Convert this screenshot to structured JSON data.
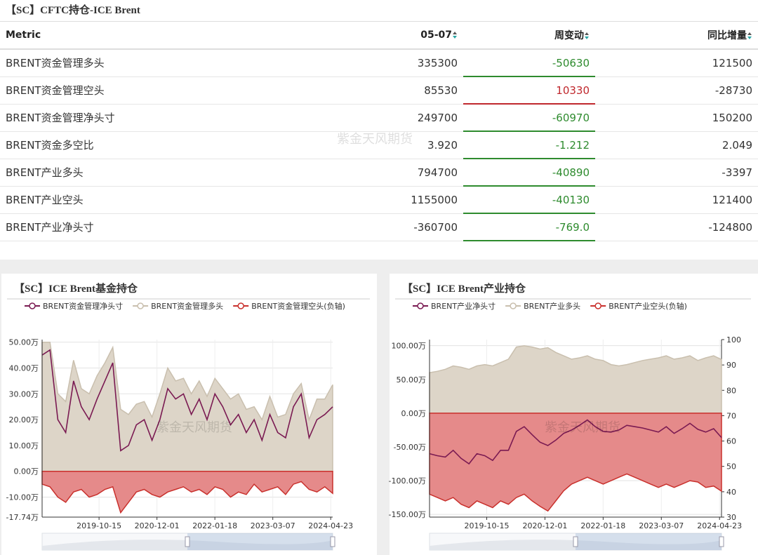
{
  "watermark": "紫金天风期货",
  "table": {
    "title": "【SC】CFTC持仓-ICE Brent",
    "columns": [
      "Metric",
      "05-07",
      "周变动",
      "同比增量"
    ],
    "rows": [
      [
        "BRENT资金管理多头",
        "335300",
        "-50630",
        "121500"
      ],
      [
        "BRENT资金管理空头",
        "85530",
        "10330",
        "-28730"
      ],
      [
        "BRENT资金管理净头寸",
        "249700",
        "-60970",
        "150200"
      ],
      [
        "BRENT资金多空比",
        "3.920",
        "-1.212",
        "2.049"
      ],
      [
        "BRENT产业多头",
        "794700",
        "-40890",
        "-3397"
      ],
      [
        "BRENT产业空头",
        "1155000",
        "-40130",
        "121400"
      ],
      [
        "BRENT产业净头寸",
        "-360700",
        "-769.0",
        "-124800"
      ]
    ]
  },
  "chart_data": [
    {
      "type": "line",
      "title": "【SC】ICE Brent基金持仓",
      "x": [
        "2018-09-04",
        "2018-10-30",
        "2018-12-25",
        "2019-02-19",
        "2019-04-16",
        "2019-06-11",
        "2019-08-06",
        "2019-10-01",
        "2019-11-26",
        "2020-01-21",
        "2020-03-17",
        "2020-05-12",
        "2020-07-07",
        "2020-09-01",
        "2020-10-27",
        "2020-12-22",
        "2021-02-16",
        "2021-04-13",
        "2021-06-08",
        "2021-08-03",
        "2021-09-28",
        "2021-11-23",
        "2022-01-18",
        "2022-03-15",
        "2022-05-10",
        "2022-07-05",
        "2022-08-30",
        "2022-10-25",
        "2022-12-20",
        "2023-02-14",
        "2023-04-11",
        "2023-06-06",
        "2023-08-01",
        "2023-09-26",
        "2023-11-21",
        "2024-01-16",
        "2024-03-12",
        "2024-05-07"
      ],
      "xlim": [
        "2018-09-04",
        "2024-05-07"
      ],
      "xticks": [
        "2019-10-15",
        "2020-12-01",
        "2022-01-18",
        "2023-03-07",
        "2024-04-23"
      ],
      "ylim": [
        -177400,
        510000
      ],
      "yticks": [
        {
          "value": -177400,
          "label": "-17.74万"
        },
        {
          "value": -100000,
          "label": "-10.00万"
        },
        {
          "value": 0,
          "label": "0.00万"
        },
        {
          "value": 100000,
          "label": "10.00万"
        },
        {
          "value": 200000,
          "label": "20.00万"
        },
        {
          "value": 300000,
          "label": "30.00万"
        },
        {
          "value": 400000,
          "label": "40.00万"
        },
        {
          "value": 500000,
          "label": "50.00万"
        }
      ],
      "grid": true,
      "series": [
        {
          "name": "BRENT资金管理净头寸",
          "color": "#7a1a52",
          "values": [
            450000,
            470000,
            200000,
            150000,
            350000,
            250000,
            200000,
            280000,
            350000,
            420000,
            80000,
            100000,
            180000,
            200000,
            120000,
            200000,
            320000,
            280000,
            300000,
            220000,
            280000,
            200000,
            300000,
            250000,
            180000,
            220000,
            150000,
            200000,
            120000,
            220000,
            150000,
            130000,
            250000,
            300000,
            130000,
            200000,
            220000,
            249700
          ]
        },
        {
          "name": "BRENT资金管理多头",
          "color": "#c9bfae",
          "area_color": "#ddd5c8",
          "values": [
            500000,
            500000,
            300000,
            270000,
            430000,
            320000,
            300000,
            370000,
            420000,
            480000,
            240000,
            220000,
            260000,
            270000,
            210000,
            300000,
            400000,
            350000,
            360000,
            300000,
            350000,
            290000,
            360000,
            320000,
            280000,
            300000,
            240000,
            250000,
            200000,
            290000,
            210000,
            220000,
            300000,
            340000,
            200000,
            280000,
            280000,
            335300
          ]
        },
        {
          "name": "BRENT资金管理空头(负轴)",
          "color": "#c9302c",
          "area_color": "#e58a8a",
          "values": [
            -50000,
            -60000,
            -100000,
            -120000,
            -80000,
            -70000,
            -100000,
            -90000,
            -70000,
            -60000,
            -160000,
            -120000,
            -80000,
            -70000,
            -90000,
            -100000,
            -80000,
            -70000,
            -60000,
            -80000,
            -70000,
            -90000,
            -60000,
            -70000,
            -100000,
            -80000,
            -90000,
            -50000,
            -80000,
            -70000,
            -60000,
            -90000,
            -50000,
            -40000,
            -70000,
            -80000,
            -60000,
            -85530
          ]
        }
      ]
    },
    {
      "type": "line",
      "title": "【SC】ICE Brent产业持仓",
      "x": [
        "2018-09-04",
        "2018-10-30",
        "2018-12-25",
        "2019-02-19",
        "2019-04-16",
        "2019-06-11",
        "2019-08-06",
        "2019-10-01",
        "2019-11-26",
        "2020-01-21",
        "2020-03-17",
        "2020-05-12",
        "2020-07-07",
        "2020-09-01",
        "2020-10-27",
        "2020-12-22",
        "2021-02-16",
        "2021-04-13",
        "2021-06-08",
        "2021-08-03",
        "2021-09-28",
        "2021-11-23",
        "2022-01-18",
        "2022-03-15",
        "2022-05-10",
        "2022-07-05",
        "2022-08-30",
        "2022-10-25",
        "2022-12-20",
        "2023-02-14",
        "2023-04-11",
        "2023-06-06",
        "2023-08-01",
        "2023-09-26",
        "2023-11-21",
        "2024-01-16",
        "2024-03-12",
        "2024-05-07"
      ],
      "xlim": [
        "2018-09-04",
        "2024-05-07"
      ],
      "xticks": [
        "2019-10-15",
        "2020-12-01",
        "2022-01-18",
        "2023-03-07",
        "2024-04-23"
      ],
      "ylim": [
        -1540000,
        1090000
      ],
      "yticks": [
        {
          "value": -1500000,
          "label": "-150.00万"
        },
        {
          "value": -1000000,
          "label": "-100.00万"
        },
        {
          "value": -500000,
          "label": "-50.00万"
        },
        {
          "value": 0,
          "label": "0.00万"
        },
        {
          "value": 500000,
          "label": "50.00万"
        },
        {
          "value": 1000000,
          "label": "100.00万"
        }
      ],
      "y2lim": [
        30,
        100
      ],
      "y2ticks": [
        30,
        40,
        50,
        60,
        70,
        80,
        90,
        100
      ],
      "grid": true,
      "series": [
        {
          "name": "BRENT产业净头寸",
          "color": "#7a1a52",
          "values": [
            -600000,
            -630000,
            -650000,
            -550000,
            -670000,
            -750000,
            -600000,
            -630000,
            -700000,
            -550000,
            -550000,
            -270000,
            -200000,
            -320000,
            -430000,
            -480000,
            -400000,
            -300000,
            -250000,
            -180000,
            -100000,
            -200000,
            -270000,
            -280000,
            -250000,
            -180000,
            -200000,
            -220000,
            -250000,
            -280000,
            -200000,
            -300000,
            -230000,
            -150000,
            -240000,
            -280000,
            -230000,
            -360700
          ]
        },
        {
          "name": "BRENT产业多头",
          "color": "#c9bfae",
          "area_color": "#ddd5c8",
          "values": [
            600000,
            620000,
            650000,
            700000,
            680000,
            650000,
            700000,
            720000,
            700000,
            750000,
            800000,
            980000,
            1000000,
            980000,
            950000,
            970000,
            900000,
            850000,
            800000,
            820000,
            850000,
            800000,
            780000,
            720000,
            700000,
            720000,
            750000,
            780000,
            800000,
            820000,
            850000,
            800000,
            820000,
            850000,
            780000,
            820000,
            850000,
            794700
          ]
        },
        {
          "name": "BRENT产业空头(负轴)",
          "color": "#c9302c",
          "area_color": "#e58a8a",
          "values": [
            -1200000,
            -1250000,
            -1300000,
            -1250000,
            -1350000,
            -1400000,
            -1300000,
            -1350000,
            -1400000,
            -1300000,
            -1350000,
            -1250000,
            -1200000,
            -1300000,
            -1380000,
            -1450000,
            -1300000,
            -1150000,
            -1050000,
            -1000000,
            -950000,
            -1000000,
            -1050000,
            -1000000,
            -950000,
            -900000,
            -950000,
            -1000000,
            -1050000,
            -1100000,
            -1050000,
            -1100000,
            -1050000,
            -1000000,
            -1020000,
            -1100000,
            -1080000,
            -1155000
          ]
        }
      ]
    }
  ]
}
